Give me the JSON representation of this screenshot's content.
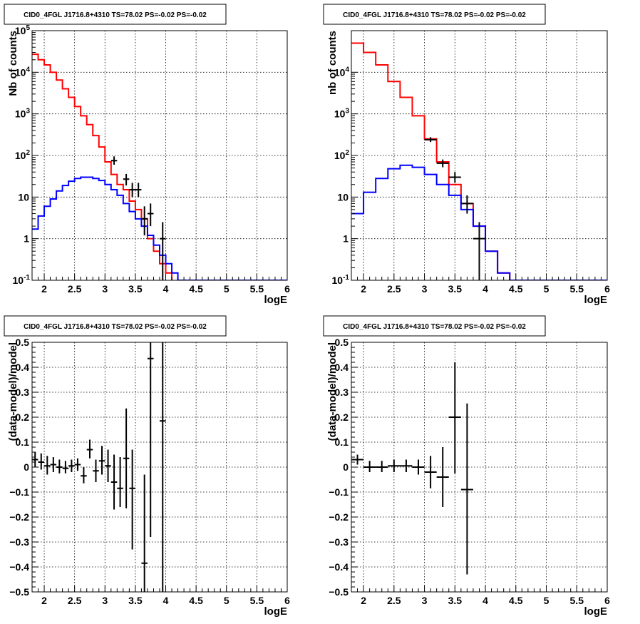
{
  "chart_data": [
    {
      "type": "step-histogram",
      "title": "CID0_4FGL J1716.8+4310 TS=78.02 PS=-0.02 PS=-0.02",
      "xlabel": "logE",
      "ylabel": "Nb of counts",
      "ylog": true,
      "xlim": [
        1.8,
        6.0
      ],
      "ylim": [
        0.1,
        100000
      ],
      "grid": true,
      "x_ticks": [
        2,
        2.5,
        3,
        3.5,
        4,
        4.5,
        5,
        5.5,
        6
      ],
      "x_tick_labels": [
        "2",
        "2.5",
        "3",
        "3.5",
        "4",
        "4.5",
        "5",
        "5.5",
        "6"
      ],
      "y_ticks": [
        0.1,
        1,
        10,
        100,
        1000,
        10000,
        100000
      ],
      "y_tick_labels": [
        "10^-1",
        "1",
        "10",
        "10^2",
        "10^3",
        "10^4",
        "10^5"
      ],
      "bin_edges": [
        1.8,
        1.9,
        2.0,
        2.1,
        2.2,
        2.3,
        2.4,
        2.5,
        2.6,
        2.7,
        2.8,
        2.9,
        3.0,
        3.1,
        3.2,
        3.3,
        3.4,
        3.5,
        3.6,
        3.7,
        3.8,
        3.9,
        4.0,
        4.1,
        4.2,
        4.3,
        4.4,
        4.5,
        4.6,
        4.7,
        4.8,
        4.9,
        5.0,
        5.1,
        5.2,
        5.3,
        5.4,
        5.5,
        5.6,
        5.7,
        5.8,
        5.9,
        6.0
      ],
      "series": [
        {
          "color": "#ff0000",
          "values": [
            27000,
            20000,
            15000,
            10000,
            6500,
            4000,
            2500,
            1500,
            900,
            550,
            300,
            160,
            70,
            35,
            20,
            15,
            8,
            5,
            3,
            1,
            0.5,
            0.25,
            0.15,
            0,
            0,
            0,
            0,
            0,
            0,
            0,
            0,
            0,
            0,
            0,
            0,
            0,
            0,
            0,
            0,
            0,
            0,
            0
          ]
        },
        {
          "color": "#0000ff",
          "values": [
            1.7,
            3.5,
            6,
            9,
            14,
            19,
            24,
            28,
            30,
            30,
            28,
            25,
            20,
            15,
            11,
            7,
            4.5,
            3,
            2,
            1.2,
            0.7,
            0.4,
            0.25,
            0.15,
            0.1,
            0.1,
            0.1,
            0.1,
            0.1,
            0.1,
            0.1,
            0.1,
            0.1,
            0.1,
            0.1,
            0.1,
            0.1,
            0.1,
            0.1,
            0.1,
            0.1,
            0.1
          ]
        }
      ],
      "data_points": [
        {
          "x": 3.15,
          "xerr": 0.05,
          "y": 75,
          "ylo": 60,
          "yhi": 95
        },
        {
          "x": 3.35,
          "xerr": 0.05,
          "y": 27,
          "ylo": 19,
          "yhi": 36
        },
        {
          "x": 3.45,
          "xerr": 0.05,
          "y": 15,
          "ylo": 10,
          "yhi": 22
        },
        {
          "x": 3.55,
          "xerr": 0.05,
          "y": 15,
          "ylo": 10,
          "yhi": 22
        },
        {
          "x": 3.65,
          "xerr": 0.05,
          "y": 3,
          "ylo": 1.2,
          "yhi": 6
        },
        {
          "x": 3.75,
          "xerr": 0.05,
          "y": 4,
          "ylo": 2,
          "yhi": 7
        },
        {
          "x": 3.95,
          "xerr": 0.05,
          "y": 1,
          "ylo": 0.1,
          "yhi": 2.5
        }
      ]
    },
    {
      "type": "step-histogram",
      "title": "CID0_4FGL J1716.8+4310 TS=78.02 PS=-0.02 PS=-0.02",
      "xlabel": "logE",
      "ylabel": "nb of counts",
      "ylog": true,
      "xlim": [
        1.8,
        6.0
      ],
      "ylim": [
        0.1,
        100000
      ],
      "grid": true,
      "x_ticks": [
        2,
        2.5,
        3,
        3.5,
        4,
        4.5,
        5,
        5.5,
        6
      ],
      "x_tick_labels": [
        "2",
        "2.5",
        "3",
        "3.5",
        "4",
        "4.5",
        "5",
        "5.5",
        "6"
      ],
      "y_ticks": [
        0.1,
        1,
        10,
        100,
        1000,
        10000
      ],
      "y_tick_labels": [
        "10^-1",
        "1",
        "10",
        "10^2",
        "10^3",
        "10^4"
      ],
      "bin_edges": [
        1.8,
        2.0,
        2.2,
        2.4,
        2.6,
        2.8,
        3.0,
        3.2,
        3.4,
        3.6,
        3.8,
        4.0,
        4.2,
        4.4,
        4.6,
        4.8,
        5.0,
        5.2,
        5.4,
        5.6,
        5.8,
        6.0
      ],
      "series": [
        {
          "color": "#ff0000",
          "values": [
            50000,
            30000,
            15000,
            6000,
            2500,
            900,
            250,
            70,
            20,
            7,
            2,
            0.5,
            0.15,
            0,
            0,
            0,
            0,
            0,
            0,
            0,
            0
          ]
        },
        {
          "color": "#0000ff",
          "values": [
            4,
            13,
            28,
            48,
            58,
            52,
            35,
            20,
            11,
            5,
            2,
            0.5,
            0.15,
            0.1,
            0.1,
            0.1,
            0.1,
            0.1,
            0.1,
            0.1,
            0.1
          ]
        }
      ],
      "data_points": [
        {
          "x": 3.1,
          "xerr": 0.1,
          "y": 240,
          "ylo": 210,
          "yhi": 275
        },
        {
          "x": 3.3,
          "xerr": 0.1,
          "y": 65,
          "ylo": 52,
          "yhi": 80
        },
        {
          "x": 3.5,
          "xerr": 0.1,
          "y": 30,
          "ylo": 22,
          "yhi": 40
        },
        {
          "x": 3.7,
          "xerr": 0.1,
          "y": 7,
          "ylo": 4,
          "yhi": 11
        },
        {
          "x": 3.9,
          "xerr": 0.1,
          "y": 1,
          "ylo": 0.1,
          "yhi": 2.5
        }
      ]
    },
    {
      "type": "scatter-errorbars",
      "title": "CID0_4FGL J1716.8+4310 TS=78.02 PS=-0.02 PS=-0.02",
      "xlabel": "logE",
      "ylabel": "(data-model)/model",
      "ylog": false,
      "xlim": [
        1.8,
        6.0
      ],
      "ylim": [
        -0.5,
        0.5
      ],
      "grid": true,
      "x_ticks": [
        2,
        2.5,
        3,
        3.5,
        4,
        4.5,
        5,
        5.5,
        6
      ],
      "x_tick_labels": [
        "2",
        "2.5",
        "3",
        "3.5",
        "4",
        "4.5",
        "5",
        "5.5",
        "6"
      ],
      "y_ticks": [
        -0.5,
        -0.4,
        -0.3,
        -0.2,
        -0.1,
        0,
        0.1,
        0.2,
        0.3,
        0.4,
        0.5
      ],
      "y_tick_labels": [
        "−0.5",
        "−0.4",
        "−0.3",
        "−0.2",
        "−0.1",
        "0",
        "0.1",
        "0.2",
        "0.3",
        "0.4",
        "0.5"
      ],
      "series": [],
      "data_points": [
        {
          "x": 1.85,
          "xerr": 0.05,
          "y": 0.03,
          "ylo": 0.0,
          "yhi": 0.06
        },
        {
          "x": 1.95,
          "xerr": 0.05,
          "y": 0.02,
          "ylo": -0.01,
          "yhi": 0.055
        },
        {
          "x": 2.05,
          "xerr": 0.05,
          "y": 0.005,
          "ylo": -0.03,
          "yhi": 0.045
        },
        {
          "x": 2.15,
          "xerr": 0.05,
          "y": 0.01,
          "ylo": -0.02,
          "yhi": 0.04
        },
        {
          "x": 2.25,
          "xerr": 0.05,
          "y": 0.0,
          "ylo": -0.025,
          "yhi": 0.03
        },
        {
          "x": 2.35,
          "xerr": 0.05,
          "y": -0.005,
          "ylo": -0.025,
          "yhi": 0.025
        },
        {
          "x": 2.45,
          "xerr": 0.05,
          "y": 0.005,
          "ylo": -0.02,
          "yhi": 0.03
        },
        {
          "x": 2.55,
          "xerr": 0.05,
          "y": 0.01,
          "ylo": -0.015,
          "yhi": 0.035
        },
        {
          "x": 2.65,
          "xerr": 0.05,
          "y": -0.035,
          "ylo": -0.065,
          "yhi": 0.0
        },
        {
          "x": 2.75,
          "xerr": 0.05,
          "y": 0.07,
          "ylo": 0.035,
          "yhi": 0.11
        },
        {
          "x": 2.85,
          "xerr": 0.05,
          "y": -0.015,
          "ylo": -0.06,
          "yhi": 0.03
        },
        {
          "x": 2.95,
          "xerr": 0.05,
          "y": 0.025,
          "ylo": -0.03,
          "yhi": 0.085
        },
        {
          "x": 3.05,
          "xerr": 0.05,
          "y": 0.005,
          "ylo": -0.06,
          "yhi": 0.07
        },
        {
          "x": 3.15,
          "xerr": 0.05,
          "y": -0.06,
          "ylo": -0.17,
          "yhi": 0.05
        },
        {
          "x": 3.25,
          "xerr": 0.05,
          "y": -0.085,
          "ylo": -0.16,
          "yhi": 0.04
        },
        {
          "x": 3.35,
          "xerr": 0.05,
          "y": 0.035,
          "ylo": -0.165,
          "yhi": 0.235
        },
        {
          "x": 3.45,
          "xerr": 0.05,
          "y": -0.085,
          "ylo": -0.33,
          "yhi": 0.07
        },
        {
          "x": 3.65,
          "xerr": 0.05,
          "y": -0.385,
          "ylo": -0.5,
          "yhi": -0.03
        },
        {
          "x": 3.75,
          "xerr": 0.05,
          "y": 0.435,
          "ylo": -0.28,
          "yhi": 0.5
        },
        {
          "x": 3.95,
          "xerr": 0.05,
          "y": 0.185,
          "ylo": -0.5,
          "yhi": 0.5
        }
      ]
    },
    {
      "type": "scatter-errorbars",
      "title": "CID0_4FGL J1716.8+4310 TS=78.02 PS=-0.02 PS=-0.02",
      "xlabel": "logE",
      "ylabel": "(data-model)/model",
      "ylog": false,
      "xlim": [
        1.8,
        6.0
      ],
      "ylim": [
        -0.5,
        0.5
      ],
      "grid": true,
      "x_ticks": [
        2,
        2.5,
        3,
        3.5,
        4,
        4.5,
        5,
        5.5,
        6
      ],
      "x_tick_labels": [
        "2",
        "2.5",
        "3",
        "3.5",
        "4",
        "4.5",
        "5",
        "5.5",
        "6"
      ],
      "y_ticks": [
        -0.5,
        -0.4,
        -0.3,
        -0.2,
        -0.1,
        0,
        0.1,
        0.2,
        0.3,
        0.4,
        0.5
      ],
      "y_tick_labels": [
        "−0.5",
        "−0.4",
        "−0.3",
        "−0.2",
        "−0.1",
        "0",
        "0.1",
        "0.2",
        "0.3",
        "0.4",
        "0.5"
      ],
      "series": [],
      "data_points": [
        {
          "x": 1.9,
          "xerr": 0.1,
          "y": 0.03,
          "ylo": 0.01,
          "yhi": 0.05
        },
        {
          "x": 2.1,
          "xerr": 0.1,
          "y": 0.0,
          "ylo": -0.02,
          "yhi": 0.025
        },
        {
          "x": 2.3,
          "xerr": 0.1,
          "y": 0.0,
          "ylo": -0.02,
          "yhi": 0.025
        },
        {
          "x": 2.5,
          "xerr": 0.1,
          "y": 0.005,
          "ylo": -0.02,
          "yhi": 0.03
        },
        {
          "x": 2.7,
          "xerr": 0.1,
          "y": 0.005,
          "ylo": -0.02,
          "yhi": 0.03
        },
        {
          "x": 2.9,
          "xerr": 0.1,
          "y": 0.0,
          "ylo": -0.03,
          "yhi": 0.03
        },
        {
          "x": 3.1,
          "xerr": 0.1,
          "y": -0.02,
          "ylo": -0.085,
          "yhi": 0.045
        },
        {
          "x": 3.3,
          "xerr": 0.1,
          "y": -0.04,
          "ylo": -0.16,
          "yhi": 0.08
        },
        {
          "x": 3.5,
          "xerr": 0.1,
          "y": 0.2,
          "ylo": -0.025,
          "yhi": 0.42
        },
        {
          "x": 3.7,
          "xerr": 0.1,
          "y": -0.09,
          "ylo": -0.43,
          "yhi": 0.255
        }
      ]
    }
  ]
}
